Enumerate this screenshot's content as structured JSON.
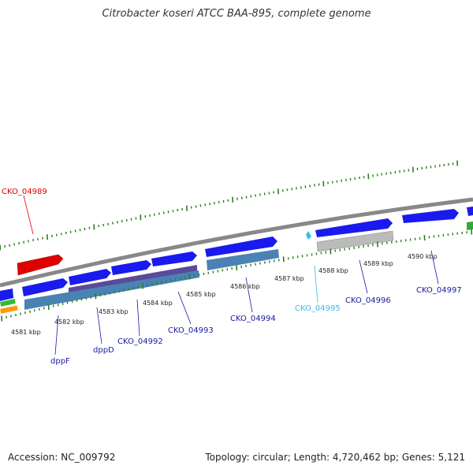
{
  "header": {
    "title": "Citrobacter koseri ATCC BAA-895, complete genome"
  },
  "footer": {
    "accession": "Accession: NC_009792",
    "summary": "Topology: circular; Length: 4,720,462 bp; Genes: 5,121"
  },
  "colors": {
    "backbone": "#888888",
    "forward_cds": "#1a1aee",
    "reverse_cds": "#e00000",
    "rna_band": "#4a82b4",
    "purple_band": "#5a4a9a",
    "grey_band": "#bbbbbb",
    "tick": "#2e7d22",
    "label_default": "#1a1aa0",
    "label_highlight": "#e00000",
    "label_cyan": "#33bbee"
  },
  "scale": {
    "unit": "kbp",
    "major_ticks": [
      {
        "kbp": 4581,
        "label": "4581 kbp"
      },
      {
        "kbp": 4582,
        "label": "4582 kbp"
      },
      {
        "kbp": 4583,
        "label": "4583 kbp"
      },
      {
        "kbp": 4584,
        "label": "4584 kbp"
      },
      {
        "kbp": 4585,
        "label": "4585 kbp"
      },
      {
        "kbp": 4586,
        "label": "4586 kbp"
      },
      {
        "kbp": 4587,
        "label": "4587 kbp"
      },
      {
        "kbp": 4588,
        "label": "4588 kbp"
      },
      {
        "kbp": 4589,
        "label": "4589 kbp"
      },
      {
        "kbp": 4590,
        "label": "4590 kbp"
      }
    ]
  },
  "gene_labels": [
    {
      "id": "dppF",
      "text": "dppF",
      "color": "label_default"
    },
    {
      "id": "dppD",
      "text": "dppD",
      "color": "label_default"
    },
    {
      "id": "CKO_04992",
      "text": "CKO_04992",
      "color": "label_default"
    },
    {
      "id": "CKO_04993",
      "text": "CKO_04993",
      "color": "label_default"
    },
    {
      "id": "CKO_04994",
      "text": "CKO_04994",
      "color": "label_default"
    },
    {
      "id": "CKO_04995",
      "text": "CKO_04995",
      "color": "label_cyan"
    },
    {
      "id": "CKO_04996",
      "text": "CKO_04996",
      "color": "label_default"
    },
    {
      "id": "CKO_04997",
      "text": "CKO_04997",
      "color": "label_default"
    },
    {
      "id": "CKO_04989",
      "text": "CKO_04989",
      "color": "label_highlight"
    }
  ]
}
